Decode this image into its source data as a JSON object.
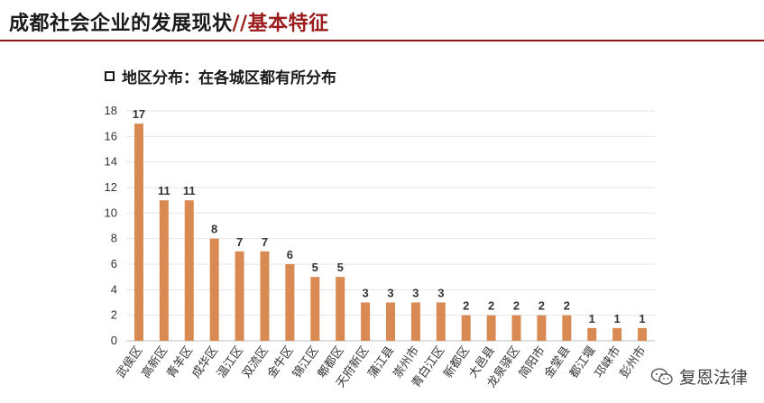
{
  "header": {
    "title_main": "成都社会企业的发展现状",
    "title_sep": "//",
    "title_sub": "基本特征"
  },
  "subtitle": {
    "text": "地区分布：在各城区都有所分布"
  },
  "watermark": {
    "text": "复恩法律",
    "icon": "wechat-icon"
  },
  "colors": {
    "bar": "#D98A52",
    "grid": "#E6E6E6",
    "accent": "#9B1C1C"
  },
  "chart_data": {
    "type": "bar",
    "title": "",
    "xlabel": "",
    "ylabel": "",
    "ylim": [
      0,
      18
    ],
    "yticks": [
      0,
      2,
      4,
      6,
      8,
      10,
      12,
      14,
      16,
      18
    ],
    "grid": true,
    "categories": [
      "武侯区",
      "高新区",
      "青羊区",
      "成华区",
      "温江区",
      "双流区",
      "金牛区",
      "锦江区",
      "郫都区",
      "天府新区",
      "蒲江县",
      "崇州市",
      "青白江区",
      "新都区",
      "大邑县",
      "龙泉驿区",
      "简阳市",
      "金堂县",
      "都江堰",
      "邛崃市",
      "彭州市"
    ],
    "values": [
      17,
      11,
      11,
      8,
      7,
      7,
      6,
      5,
      5,
      3,
      3,
      3,
      3,
      2,
      2,
      2,
      2,
      2,
      1,
      1,
      1
    ],
    "data_labels": [
      "17",
      "11",
      "11",
      "8",
      "7",
      "7",
      "6",
      "5",
      "5",
      "3",
      "3",
      "3",
      "3",
      "2",
      "2",
      "2",
      "2",
      "2",
      "1",
      "1",
      "1"
    ]
  }
}
